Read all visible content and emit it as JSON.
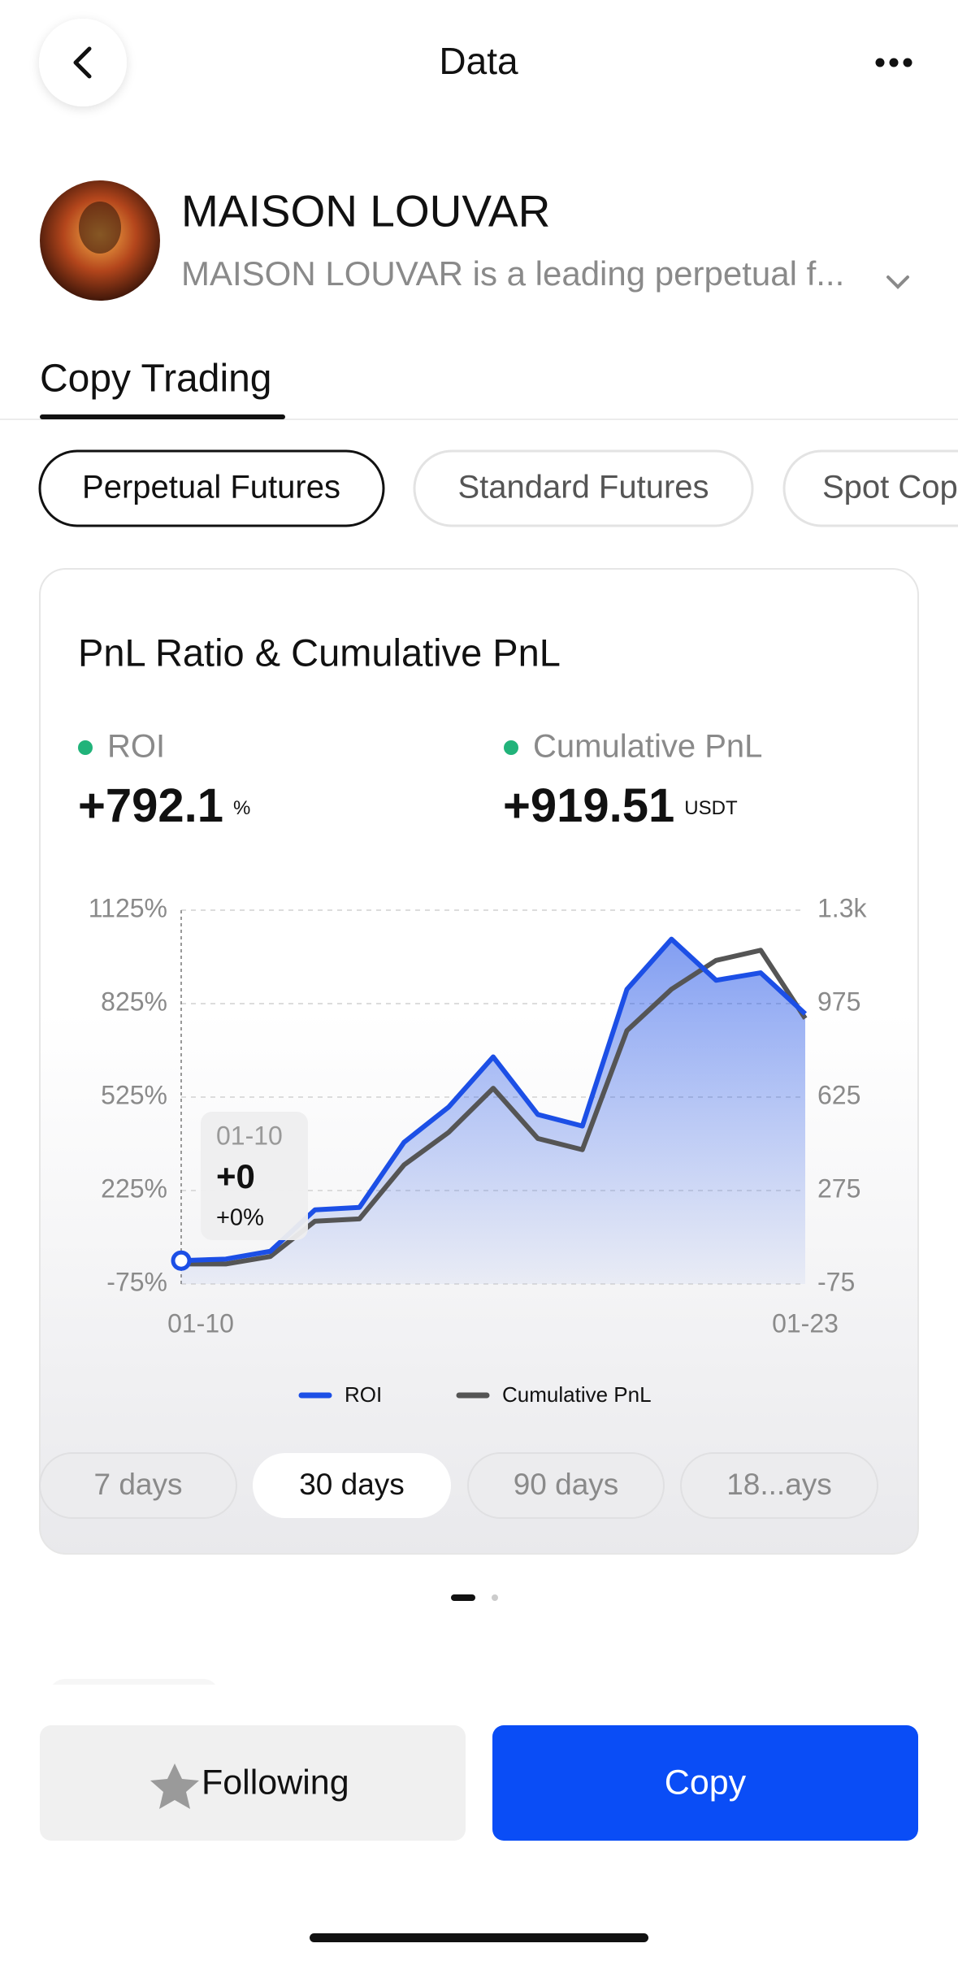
{
  "header": {
    "title": "Data"
  },
  "profile": {
    "name": "MAISON LOUVAR",
    "description": "MAISON LOUVAR is a leading perpetual f..."
  },
  "tabs": [
    "Copy Trading"
  ],
  "filters": [
    "Perpetual Futures",
    "Standard Futures",
    "Spot Copy"
  ],
  "card": {
    "title": "PnL Ratio & Cumulative PnL",
    "stats": [
      {
        "label": "ROI",
        "value": "+792.1",
        "unit": "%"
      },
      {
        "label": "Cumulative PnL",
        "value": "+919.51",
        "unit": "USDT"
      }
    ]
  },
  "chart_data": {
    "type": "line",
    "area": true,
    "categories": [
      "01-10",
      null,
      null,
      null,
      null,
      null,
      null,
      null,
      null,
      null,
      null,
      null,
      null,
      null,
      "01-23"
    ],
    "series": [
      {
        "name": "ROI",
        "color": "#1c4fe6",
        "values": [
          0,
          5,
          30,
          163,
          171,
          380,
          493,
          654,
          469,
          432,
          871,
          1032,
          900,
          924,
          792.1
        ]
      },
      {
        "name": "Cumulative PnL",
        "color": "#555555",
        "axis": "y2",
        "values": [
          0,
          0,
          28,
          160,
          169,
          371,
          493,
          658,
          470,
          428,
          874,
          1029,
          1137,
          1175,
          919.51
        ]
      }
    ],
    "ylim": [
      -75,
      1125
    ],
    "yticks": [
      {
        "value": -75,
        "label": "-75%"
      },
      {
        "value": 225,
        "label": "225%"
      },
      {
        "value": 525,
        "label": "525%"
      },
      {
        "value": 825,
        "label": "825%"
      },
      {
        "value": 1125,
        "label": "1125%"
      }
    ],
    "y2lim": [
      -75,
      1325
    ],
    "y2ticks": [
      -75,
      275,
      625,
      975,
      {
        "value": 1325,
        "label": "1.3k"
      }
    ],
    "grid": true,
    "legend": "bottom",
    "tooltip": {
      "date": "01-10",
      "pnl": "+0",
      "roi": "+0%"
    }
  },
  "periods": [
    "7 days",
    "30 days",
    "90 days",
    "18...ays"
  ],
  "selected_period": 1,
  "actions": {
    "follow": "Following",
    "copy": "Copy"
  }
}
